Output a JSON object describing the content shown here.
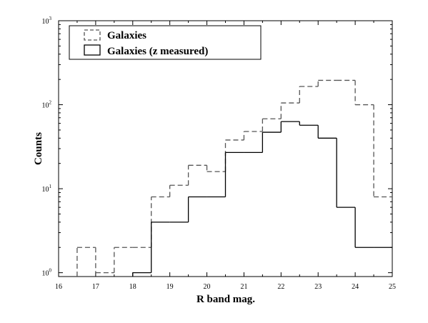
{
  "chart_data": {
    "type": "histogram",
    "xlabel": "R band mag.",
    "ylabel": "Counts",
    "xlim": [
      16,
      25
    ],
    "ylim": [
      0.9,
      1000
    ],
    "yscale": "log",
    "x_ticks": [
      "16",
      "17",
      "18",
      "19",
      "20",
      "21",
      "22",
      "23",
      "24",
      "25"
    ],
    "y_ticks": [
      {
        "value": 1,
        "base": "10",
        "exp": "0"
      },
      {
        "value": 10,
        "base": "10",
        "exp": "1"
      },
      {
        "value": 100,
        "base": "10",
        "exp": "2"
      },
      {
        "value": 1000,
        "base": "10",
        "exp": "3"
      }
    ],
    "bin_edges": [
      16.5,
      17.0,
      17.5,
      18.0,
      18.5,
      19.0,
      19.5,
      20.0,
      20.5,
      21.0,
      21.5,
      22.0,
      22.5,
      23.0,
      23.5,
      24.0,
      24.5,
      25.0
    ],
    "series": [
      {
        "name": "Galaxies",
        "style": "dashed",
        "color": "#555555",
        "counts": [
          2,
          1,
          2,
          2,
          8,
          11,
          19,
          16,
          38,
          48,
          68,
          105,
          165,
          195,
          195,
          100,
          8
        ]
      },
      {
        "name": "Galaxies (z measured)",
        "style": "solid",
        "color": "#000000",
        "counts": [
          null,
          null,
          null,
          1,
          4,
          4,
          8,
          8,
          27,
          27,
          47,
          63,
          57,
          40,
          6,
          2,
          2
        ]
      }
    ],
    "legend": "top-left",
    "grid": false
  }
}
